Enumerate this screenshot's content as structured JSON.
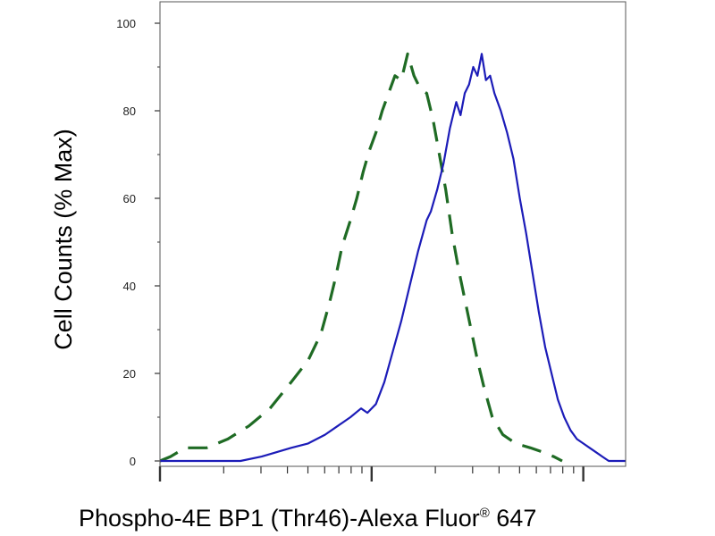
{
  "chart_data": {
    "type": "line",
    "chart_kind": "flow cytometry histogram overlay",
    "xlabel": "Phospho-4E BP1 (Thr46)-Alexa Fluor",
    "xlabel_mark": "®",
    "xlabel_suffix": " 647",
    "ylabel": "Cell Counts (% Max)",
    "x_scale": "log",
    "x_tick_labels": "none",
    "ylim": [
      0,
      100
    ],
    "y_ticks": [
      {
        "value": 0,
        "label": "0"
      },
      {
        "value": 20,
        "label": "20"
      },
      {
        "value": 40,
        "label": "40"
      },
      {
        "value": 60,
        "label": "60"
      },
      {
        "value": 80,
        "label": "80"
      },
      {
        "value": 100,
        "label": "100"
      }
    ],
    "x_domain_decades": [
      0,
      2.2
    ],
    "grid": false,
    "legend": "none",
    "series": [
      {
        "color": "#1f6b24",
        "style": "dashed",
        "points": [
          [
            0.0,
            0
          ],
          [
            0.05,
            1
          ],
          [
            0.12,
            3
          ],
          [
            0.22,
            3
          ],
          [
            0.32,
            5
          ],
          [
            0.42,
            8
          ],
          [
            0.52,
            12
          ],
          [
            0.62,
            18
          ],
          [
            0.7,
            23
          ],
          [
            0.76,
            29
          ],
          [
            0.8,
            36
          ],
          [
            0.83,
            42
          ],
          [
            0.86,
            49
          ],
          [
            0.9,
            55
          ],
          [
            0.93,
            60
          ],
          [
            0.96,
            66
          ],
          [
            0.99,
            71
          ],
          [
            1.02,
            75
          ],
          [
            1.05,
            80
          ],
          [
            1.08,
            84
          ],
          [
            1.11,
            88
          ],
          [
            1.14,
            87
          ],
          [
            1.17,
            93
          ],
          [
            1.2,
            88
          ],
          [
            1.23,
            85
          ],
          [
            1.26,
            84
          ],
          [
            1.29,
            78
          ],
          [
            1.32,
            70
          ],
          [
            1.35,
            62
          ],
          [
            1.38,
            52
          ],
          [
            1.41,
            44
          ],
          [
            1.44,
            37
          ],
          [
            1.47,
            30
          ],
          [
            1.5,
            23
          ],
          [
            1.53,
            17
          ],
          [
            1.57,
            10
          ],
          [
            1.62,
            6
          ],
          [
            1.68,
            4
          ],
          [
            1.75,
            3
          ],
          [
            1.81,
            2
          ],
          [
            1.86,
            1
          ],
          [
            1.9,
            0
          ]
        ]
      },
      {
        "color": "#1c1cb8",
        "style": "solid",
        "points": [
          [
            0.0,
            0
          ],
          [
            0.2,
            0
          ],
          [
            0.38,
            0
          ],
          [
            0.48,
            1
          ],
          [
            0.55,
            2
          ],
          [
            0.62,
            3
          ],
          [
            0.7,
            4
          ],
          [
            0.78,
            6
          ],
          [
            0.84,
            8
          ],
          [
            0.9,
            10
          ],
          [
            0.95,
            12
          ],
          [
            0.98,
            11
          ],
          [
            1.02,
            13
          ],
          [
            1.06,
            18
          ],
          [
            1.1,
            25
          ],
          [
            1.14,
            32
          ],
          [
            1.18,
            40
          ],
          [
            1.22,
            48
          ],
          [
            1.26,
            55
          ],
          [
            1.28,
            57
          ],
          [
            1.31,
            62
          ],
          [
            1.34,
            68
          ],
          [
            1.37,
            76
          ],
          [
            1.4,
            82
          ],
          [
            1.42,
            79
          ],
          [
            1.44,
            84
          ],
          [
            1.46,
            86
          ],
          [
            1.48,
            90
          ],
          [
            1.5,
            88
          ],
          [
            1.52,
            93
          ],
          [
            1.54,
            87
          ],
          [
            1.56,
            88
          ],
          [
            1.58,
            84
          ],
          [
            1.61,
            80
          ],
          [
            1.64,
            75
          ],
          [
            1.67,
            69
          ],
          [
            1.7,
            60
          ],
          [
            1.73,
            52
          ],
          [
            1.76,
            43
          ],
          [
            1.79,
            34
          ],
          [
            1.82,
            26
          ],
          [
            1.85,
            20
          ],
          [
            1.88,
            14
          ],
          [
            1.91,
            10
          ],
          [
            1.94,
            7
          ],
          [
            1.97,
            5
          ],
          [
            2.0,
            4
          ],
          [
            2.03,
            3
          ],
          [
            2.06,
            2
          ],
          [
            2.09,
            1
          ],
          [
            2.12,
            0
          ],
          [
            2.2,
            0
          ]
        ]
      }
    ]
  }
}
